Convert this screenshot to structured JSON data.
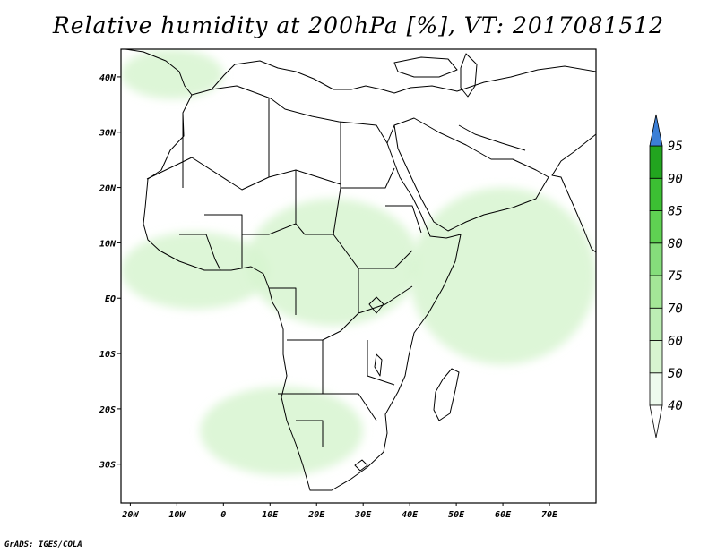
{
  "title": "Relative humidity at 200hPa [%], VT: 2017081512",
  "credit": "GrADS: IGES/COLA",
  "map": {
    "lon_range": [
      -22,
      80
    ],
    "lat_range": [
      -37,
      45
    ],
    "x_ticks": [
      {
        "lon": -20,
        "label": "20W"
      },
      {
        "lon": -10,
        "label": "10W"
      },
      {
        "lon": 0,
        "label": "0"
      },
      {
        "lon": 10,
        "label": "10E"
      },
      {
        "lon": 20,
        "label": "20E"
      },
      {
        "lon": 30,
        "label": "30E"
      },
      {
        "lon": 40,
        "label": "40E"
      },
      {
        "lon": 50,
        "label": "50E"
      },
      {
        "lon": 60,
        "label": "60E"
      },
      {
        "lon": 70,
        "label": "70E"
      }
    ],
    "y_ticks": [
      {
        "lat": 40,
        "label": "40N"
      },
      {
        "lat": 30,
        "label": "30N"
      },
      {
        "lat": 20,
        "label": "20N"
      },
      {
        "lat": 10,
        "label": "10N"
      },
      {
        "lat": 0,
        "label": "EQ"
      },
      {
        "lat": -10,
        "label": "10S"
      },
      {
        "lat": -20,
        "label": "20S"
      },
      {
        "lat": -30,
        "label": "30S"
      }
    ]
  },
  "colorbar": {
    "levels": [
      "40",
      "50",
      "60",
      "70",
      "75",
      "80",
      "85",
      "90",
      "95"
    ],
    "colors": [
      "#eefbee",
      "#d7f5d0",
      "#bdeeb4",
      "#a4e697",
      "#85dd7b",
      "#5fd152",
      "#3cbf33",
      "#22a51f",
      "#3c7fd6"
    ],
    "low_end_color": "#ffffff",
    "high_end_color": "#3c7fd6"
  },
  "chart_data": {
    "type": "heatmap",
    "title": "Relative humidity at 200hPa [%], VT: 2017081512",
    "variable": "Relative humidity",
    "units": "%",
    "level": "200hPa",
    "valid_time": "2017081512",
    "x_axis": {
      "ticks": [
        "20W",
        "10W",
        "0",
        "10E",
        "20E",
        "30E",
        "40E",
        "50E",
        "60E",
        "70E"
      ]
    },
    "y_axis": {
      "ticks": [
        "40N",
        "30N",
        "20N",
        "10N",
        "EQ",
        "10S",
        "20S",
        "30S"
      ]
    },
    "contour_levels": [
      40,
      50,
      60,
      70,
      75,
      80,
      85,
      90,
      95
    ],
    "moist_regions": [
      {
        "lon": [
          -22,
          10
        ],
        "lat": [
          -2,
          12
        ],
        "approx_value": 45
      },
      {
        "lon": [
          5,
          42
        ],
        "lat": [
          -5,
          18
        ],
        "approx_value": 45
      },
      {
        "lon": [
          40,
          80
        ],
        "lat": [
          -12,
          20
        ],
        "approx_value": 50
      },
      {
        "lon": [
          -5,
          30
        ],
        "lat": [
          -32,
          -16
        ],
        "approx_value": 45
      },
      {
        "lon": [
          -22,
          0
        ],
        "lat": [
          36,
          45
        ],
        "approx_value": 45
      }
    ]
  }
}
